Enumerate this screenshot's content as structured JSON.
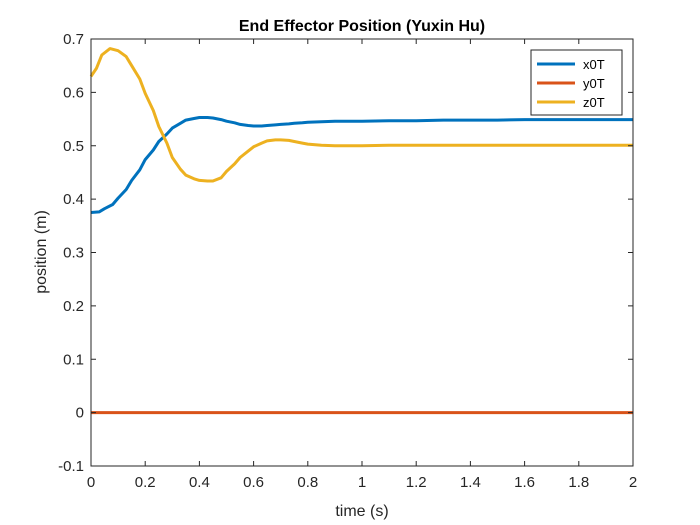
{
  "chart_data": {
    "type": "line",
    "title": "End Effector Position (Yuxin Hu)",
    "xlabel": "time (s)",
    "ylabel": "position (m)",
    "xlim": [
      0,
      2
    ],
    "ylim": [
      -0.1,
      0.7
    ],
    "xticks": [
      "0",
      "0.2",
      "0.4",
      "0.6",
      "0.8",
      "1",
      "1.2",
      "1.4",
      "1.6",
      "1.8",
      "2"
    ],
    "yticks": [
      "-0.1",
      "0",
      "0.1",
      "0.2",
      "0.3",
      "0.4",
      "0.5",
      "0.6",
      "0.7"
    ],
    "grid": false,
    "legend_position": "top-right",
    "series": [
      {
        "name": "x0T",
        "color": "#0072BD",
        "x": [
          0,
          0.03,
          0.05,
          0.08,
          0.1,
          0.13,
          0.15,
          0.18,
          0.2,
          0.23,
          0.25,
          0.28,
          0.3,
          0.33,
          0.35,
          0.38,
          0.4,
          0.43,
          0.45,
          0.48,
          0.5,
          0.53,
          0.55,
          0.58,
          0.6,
          0.63,
          0.65,
          0.68,
          0.7,
          0.73,
          0.75,
          0.78,
          0.8,
          0.85,
          0.9,
          0.95,
          1.0,
          1.1,
          1.2,
          1.3,
          1.4,
          1.5,
          1.6,
          1.7,
          1.8,
          1.9,
          2.0
        ],
        "y": [
          0.375,
          0.376,
          0.382,
          0.39,
          0.402,
          0.418,
          0.435,
          0.455,
          0.474,
          0.492,
          0.508,
          0.522,
          0.533,
          0.542,
          0.548,
          0.551,
          0.553,
          0.553,
          0.552,
          0.549,
          0.546,
          0.543,
          0.54,
          0.538,
          0.537,
          0.537,
          0.538,
          0.539,
          0.54,
          0.541,
          0.542,
          0.543,
          0.544,
          0.545,
          0.546,
          0.546,
          0.546,
          0.547,
          0.547,
          0.548,
          0.548,
          0.548,
          0.549,
          0.549,
          0.549,
          0.549,
          0.549
        ]
      },
      {
        "name": "y0T",
        "color": "#D95319",
        "x": [
          0,
          0.5,
          1.0,
          1.5,
          2.0
        ],
        "y": [
          0,
          0,
          0,
          0,
          0
        ]
      },
      {
        "name": "z0T",
        "color": "#EDB120",
        "x": [
          0,
          0.02,
          0.04,
          0.07,
          0.1,
          0.13,
          0.15,
          0.18,
          0.2,
          0.23,
          0.25,
          0.28,
          0.3,
          0.33,
          0.35,
          0.38,
          0.4,
          0.43,
          0.45,
          0.48,
          0.5,
          0.53,
          0.55,
          0.58,
          0.6,
          0.63,
          0.65,
          0.68,
          0.7,
          0.73,
          0.75,
          0.78,
          0.8,
          0.85,
          0.9,
          0.95,
          1.0,
          1.1,
          1.2,
          1.3,
          1.4,
          1.5,
          1.6,
          1.8,
          2.0
        ],
        "y": [
          0.63,
          0.645,
          0.67,
          0.682,
          0.678,
          0.667,
          0.65,
          0.625,
          0.598,
          0.566,
          0.536,
          0.505,
          0.478,
          0.456,
          0.445,
          0.438,
          0.435,
          0.434,
          0.434,
          0.44,
          0.452,
          0.466,
          0.478,
          0.49,
          0.498,
          0.505,
          0.509,
          0.511,
          0.511,
          0.51,
          0.508,
          0.505,
          0.503,
          0.501,
          0.5,
          0.5,
          0.5,
          0.501,
          0.501,
          0.501,
          0.501,
          0.501,
          0.501,
          0.501,
          0.501
        ]
      }
    ]
  }
}
